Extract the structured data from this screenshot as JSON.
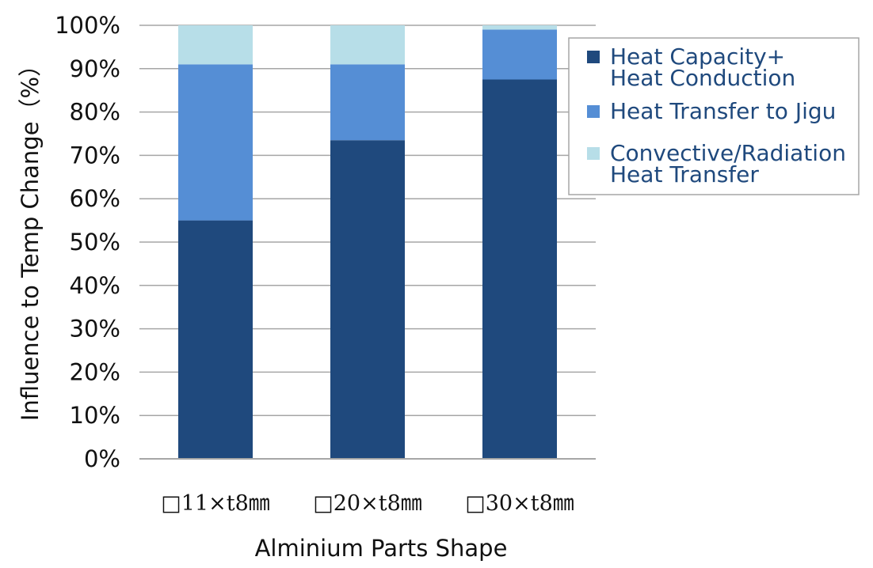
{
  "chart_data": {
    "type": "bar",
    "stacked": true,
    "categories": [
      "□11×t8㎜",
      "□20×t8㎜",
      "□30×t8㎜"
    ],
    "series": [
      {
        "name": "Heat Capacity+ Heat Conduction",
        "legend_lines": [
          "Heat Capacity+",
          "Heat Conduction"
        ],
        "color": "#1f497d",
        "values": [
          55,
          73.5,
          87.5
        ]
      },
      {
        "name": "Heat Transfer to Jigu",
        "legend_lines": [
          "Heat Transfer to Jigu"
        ],
        "color": "#558ed5",
        "values": [
          36,
          17.5,
          11.5
        ]
      },
      {
        "name": "Convective/Radiation Heat Transfer",
        "legend_lines": [
          "Convective/Radiation",
          "Heat Transfer"
        ],
        "color": "#b7dee8",
        "values": [
          9,
          9,
          1
        ]
      }
    ],
    "yticks": [
      "0%",
      "10%",
      "20%",
      "30%",
      "40%",
      "50%",
      "60%",
      "70%",
      "80%",
      "90%",
      "100%"
    ],
    "ylim": [
      0,
      100
    ],
    "xlabel": "Alminium Parts Shape",
    "ylabel": "Influence to Temp Change（%）",
    "legend_text_color": "#1f497d",
    "legend_position": "right",
    "grid": true,
    "gridline_color": "#a6a6a6"
  }
}
